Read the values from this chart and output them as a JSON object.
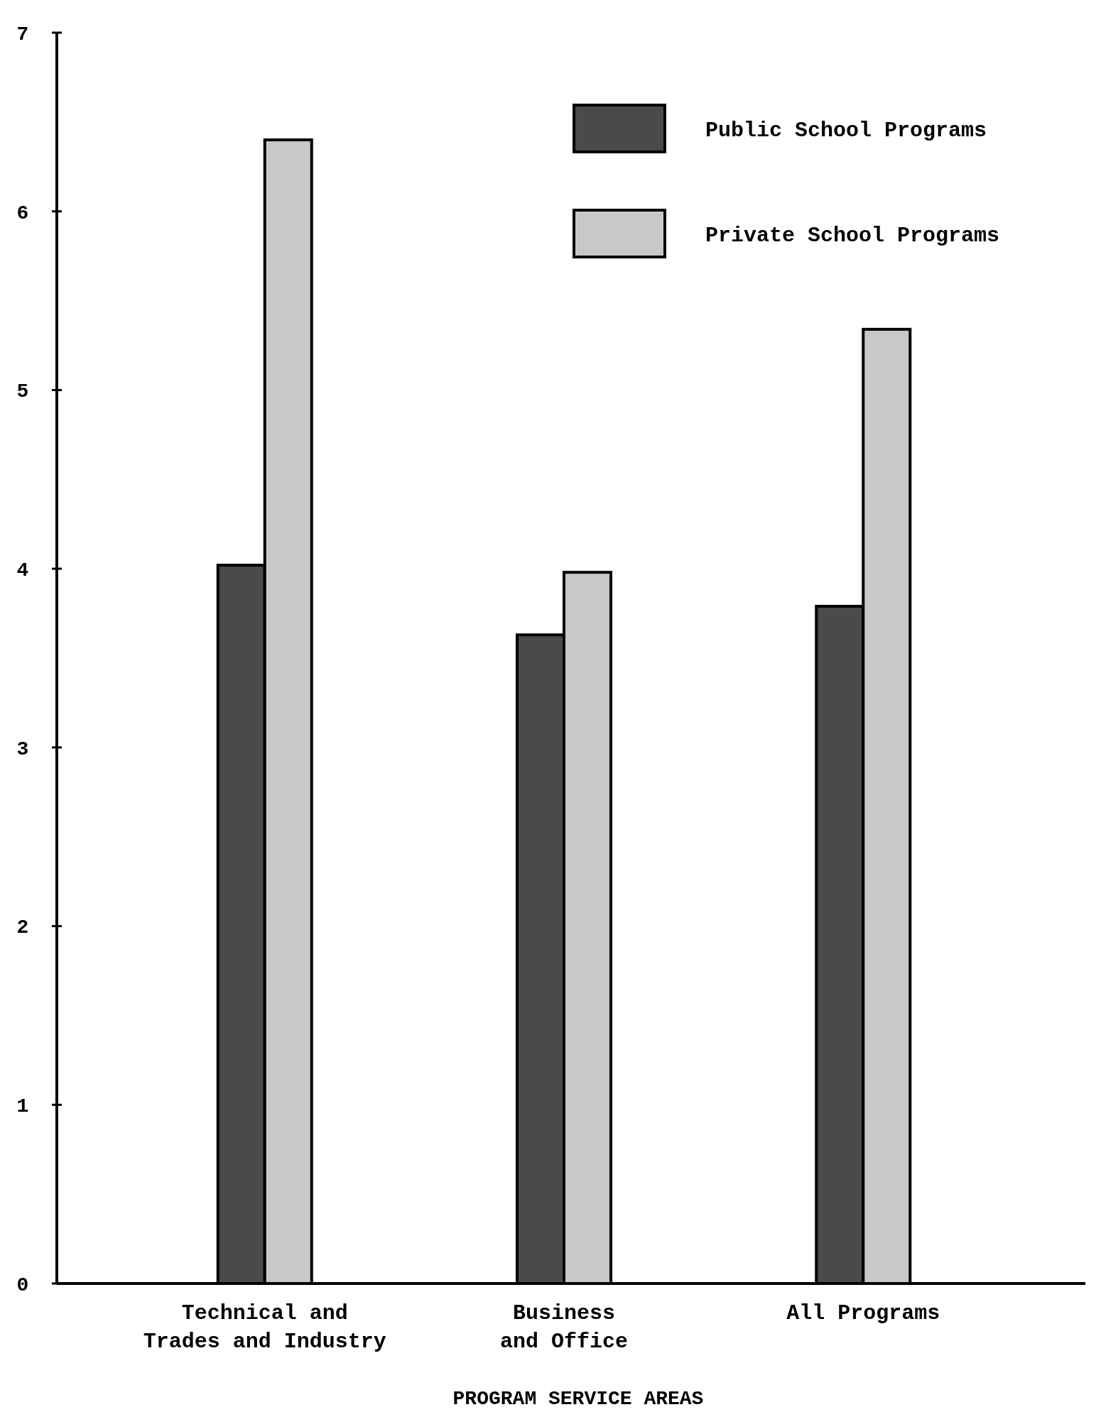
{
  "chart_data": {
    "type": "bar",
    "xlabel": "PROGRAM SERVICE AREAS",
    "categories": [
      "Technical and\nTrades and Industry",
      "Business\nand Office",
      "All Programs"
    ],
    "series": [
      {
        "name": "Public School Programs",
        "color": "#4a4a4a",
        "values": [
          4.02,
          3.63,
          3.79
        ]
      },
      {
        "name": "Private School Programs",
        "color": "#c8c8c8",
        "values": [
          6.4,
          3.98,
          5.34
        ]
      }
    ],
    "ylim": [
      0,
      7
    ],
    "yticks": [
      0,
      1,
      2,
      3,
      4,
      5,
      6,
      7
    ],
    "grid": false,
    "legend": "top right"
  }
}
